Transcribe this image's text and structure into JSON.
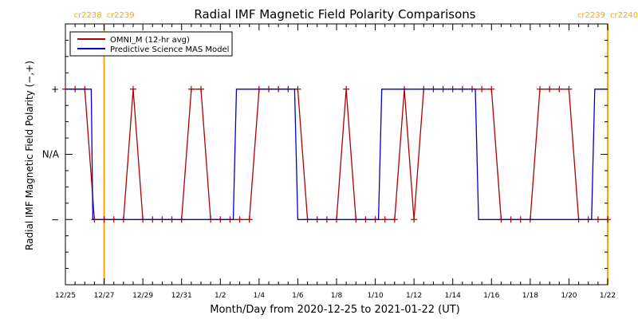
{
  "chart_data": {
    "type": "line",
    "title": "Radial IMF Magnetic Field Polarity Comparisons",
    "xlabel": "Month/Day from 2020-12-25 to 2021-01-22 (UT)",
    "ylabel": "Radial IMF Magnetic Field Polarity (−,+)",
    "xlim": [
      "2020-12-25",
      "2021-01-22"
    ],
    "x_tick_labels": [
      "12/25",
      "12/27",
      "12/29",
      "12/31",
      "1/2",
      "1/4",
      "1/6",
      "1/8",
      "1/10",
      "1/12",
      "1/14",
      "1/16",
      "1/18",
      "1/20",
      "1/22"
    ],
    "y_levels": [
      -1,
      0,
      1
    ],
    "y_tick_labels": [
      "−",
      "N/A",
      "+"
    ],
    "ylim": [
      -2,
      2
    ],
    "grid": false,
    "legend_position": "top-left",
    "carrington_markers": [
      {
        "x": "2020-12-27",
        "left_label": "cr2238",
        "right_label": "cr2239"
      },
      {
        "x": "2021-01-22",
        "left_label": "cr2239",
        "right_label": "cr2240"
      }
    ],
    "marker_color": "#FFA500",
    "series": [
      {
        "name": "OMNI_M (12-hr avg)",
        "color": "#B00000",
        "marker": "plus",
        "x": [
          "2020-12-25",
          "2020-12-25T12:00",
          "2020-12-26",
          "2020-12-26T12:00",
          "2020-12-27",
          "2020-12-27T12:00",
          "2020-12-28",
          "2020-12-28T12:00",
          "2020-12-29",
          "2020-12-29T12:00",
          "2020-12-30",
          "2020-12-30T12:00",
          "2020-12-31",
          "2020-12-31T12:00",
          "2021-01-01",
          "2021-01-01T12:00",
          "2021-01-02",
          "2021-01-02T12:00",
          "2021-01-03",
          "2021-01-03T12:00",
          "2021-01-04",
          "2021-01-04T12:00",
          "2021-01-05",
          "2021-01-05T12:00",
          "2021-01-06",
          "2021-01-06T12:00",
          "2021-01-07",
          "2021-01-07T12:00",
          "2021-01-08",
          "2021-01-08T12:00",
          "2021-01-09",
          "2021-01-09T12:00",
          "2021-01-10",
          "2021-01-10T12:00",
          "2021-01-11",
          "2021-01-11T12:00",
          "2021-01-12",
          "2021-01-12T12:00",
          "2021-01-13",
          "2021-01-13T12:00",
          "2021-01-14",
          "2021-01-14T12:00",
          "2021-01-15",
          "2021-01-15T12:00",
          "2021-01-16",
          "2021-01-16T12:00",
          "2021-01-17",
          "2021-01-17T12:00",
          "2021-01-18",
          "2021-01-18T12:00",
          "2021-01-19",
          "2021-01-19T12:00",
          "2021-01-20",
          "2021-01-20T12:00",
          "2021-01-21",
          "2021-01-21T12:00",
          "2021-01-22"
        ],
        "values": [
          1,
          1,
          1,
          -1,
          -1,
          -1,
          -1,
          1,
          -1,
          -1,
          -1,
          -1,
          -1,
          1,
          1,
          -1,
          -1,
          -1,
          -1,
          -1,
          1,
          1,
          1,
          1,
          1,
          -1,
          -1,
          -1,
          -1,
          1,
          -1,
          -1,
          -1,
          -1,
          -1,
          1,
          -1,
          1,
          1,
          1,
          1,
          1,
          1,
          1,
          1,
          -1,
          -1,
          -1,
          -1,
          1,
          1,
          1,
          1,
          -1,
          -1,
          -1,
          -1
        ]
      },
      {
        "name": "Predictive Science MAS Model",
        "color": "#0000CC",
        "marker": "none",
        "x": [
          "2020-12-25",
          "2020-12-26",
          "2020-12-26T08:00",
          "2020-12-26T10:00",
          "2021-01-02T16:00",
          "2021-01-02T20:00",
          "2021-01-05T20:00",
          "2021-01-06",
          "2021-01-10T04:00",
          "2021-01-10T08:00",
          "2021-01-15T04:00",
          "2021-01-15T08:00",
          "2021-01-21T04:00",
          "2021-01-21T08:00",
          "2021-01-22"
        ],
        "values": [
          1,
          1,
          1,
          -1,
          -1,
          1,
          1,
          -1,
          -1,
          1,
          1,
          -1,
          -1,
          1,
          1
        ]
      }
    ]
  }
}
